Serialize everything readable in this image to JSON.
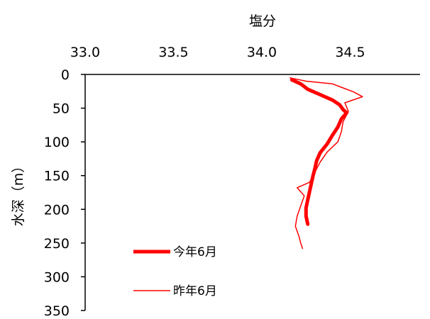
{
  "chart_data": {
    "type": "line",
    "title": "",
    "xlabel": "塩分",
    "ylabel": "水深（m）",
    "xlim": [
      33.0,
      35.0
    ],
    "ylim": [
      0,
      350
    ],
    "x_axis_position": "top",
    "y_axis_inverted": true,
    "x_ticks": [
      "33.0",
      "33.5",
      "34.0",
      "34.5"
    ],
    "y_ticks": [
      "0",
      "50",
      "100",
      "150",
      "200",
      "250",
      "300",
      "350"
    ],
    "grid": false,
    "legend_position": "bottom-left",
    "series": [
      {
        "name": "今年6月",
        "color": "#ff0000",
        "line_style": "thick",
        "points": [
          [
            34.17,
            8
          ],
          [
            34.22,
            14
          ],
          [
            34.26,
            22
          ],
          [
            34.33,
            30
          ],
          [
            34.4,
            38
          ],
          [
            34.44,
            45
          ],
          [
            34.46,
            52
          ],
          [
            34.48,
            57
          ],
          [
            34.45,
            66
          ],
          [
            34.43,
            78
          ],
          [
            34.4,
            90
          ],
          [
            34.37,
            103
          ],
          [
            34.33,
            116
          ],
          [
            34.31,
            128
          ],
          [
            34.3,
            140
          ],
          [
            34.29,
            150
          ],
          [
            34.28,
            162
          ],
          [
            34.27,
            174
          ],
          [
            34.26,
            186
          ],
          [
            34.25,
            198
          ],
          [
            34.25,
            210
          ],
          [
            34.26,
            222
          ]
        ]
      },
      {
        "name": "昨年6月",
        "color": "#ff0000",
        "line_style": "thin",
        "points": [
          [
            34.16,
            5
          ],
          [
            34.25,
            10
          ],
          [
            34.4,
            14
          ],
          [
            34.46,
            20
          ],
          [
            34.52,
            26
          ],
          [
            34.57,
            33
          ],
          [
            34.47,
            42
          ],
          [
            34.49,
            55
          ],
          [
            34.46,
            70
          ],
          [
            34.45,
            85
          ],
          [
            34.43,
            100
          ],
          [
            34.37,
            115
          ],
          [
            34.33,
            130
          ],
          [
            34.3,
            145
          ],
          [
            34.27,
            160
          ],
          [
            34.2,
            168
          ],
          [
            34.24,
            180
          ],
          [
            34.22,
            195
          ],
          [
            34.2,
            210
          ],
          [
            34.19,
            225
          ],
          [
            34.21,
            240
          ],
          [
            34.22,
            250
          ],
          [
            34.23,
            258
          ]
        ]
      }
    ]
  }
}
